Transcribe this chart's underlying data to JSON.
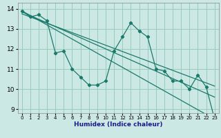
{
  "title": "",
  "xlabel": "Humidex (Indice chaleur)",
  "bg_color": "#cce8e4",
  "grid_color": "#99ccbb",
  "line_color": "#1a7a6a",
  "xlim": [
    -0.5,
    23.5
  ],
  "ylim": [
    8.8,
    14.3
  ],
  "xticks": [
    0,
    1,
    2,
    3,
    4,
    5,
    6,
    7,
    8,
    9,
    10,
    11,
    12,
    13,
    14,
    15,
    16,
    17,
    18,
    19,
    20,
    21,
    22,
    23
  ],
  "yticks": [
    9,
    10,
    11,
    12,
    13,
    14
  ],
  "series1": [
    13.9,
    13.6,
    13.7,
    13.4,
    11.8,
    11.9,
    11.0,
    10.6,
    10.2,
    10.2,
    10.4,
    11.9,
    12.6,
    13.3,
    12.9,
    12.6,
    11.0,
    10.9,
    10.4,
    10.4,
    10.0,
    10.7,
    10.1,
    8.5
  ],
  "line2": [
    [
      0,
      13.9
    ],
    [
      23,
      8.5
    ]
  ],
  "line3": [
    [
      0,
      13.85
    ],
    [
      23,
      9.6
    ]
  ],
  "line4": [
    [
      0,
      13.75
    ],
    [
      23,
      10.15
    ]
  ]
}
